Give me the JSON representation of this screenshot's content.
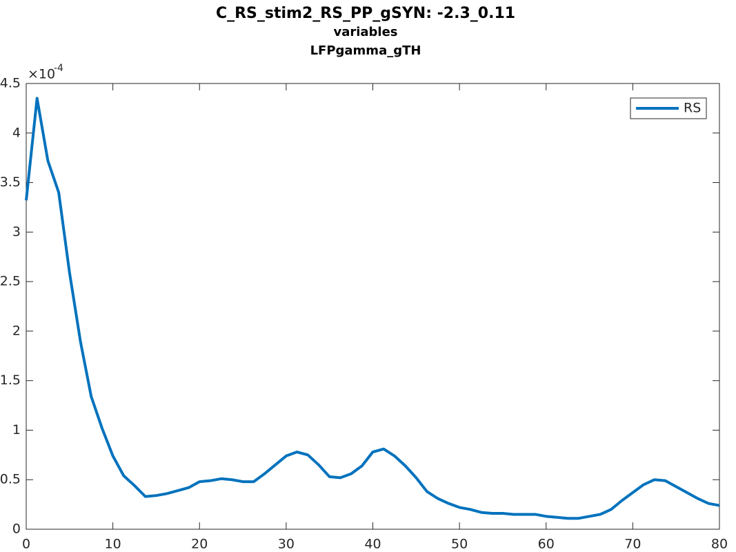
{
  "chart_data": {
    "type": "line",
    "title": "C_RS_stim2_RS_PP_gSYN: -2.3_0.11",
    "subtitle": "variables",
    "subtitle2": "LFPgamma_gTH",
    "y_multiplier_base": "×10",
    "y_multiplier_power": "-4",
    "x": [
      0,
      1.25,
      2.5,
      3.75,
      5,
      6.25,
      7.5,
      8.75,
      10,
      11.25,
      12.5,
      13.75,
      15,
      16.25,
      17.5,
      18.75,
      20,
      21.25,
      22.5,
      23.75,
      25,
      26.25,
      27.5,
      28.75,
      30,
      31.25,
      32.5,
      33.75,
      35,
      36.25,
      37.5,
      38.75,
      40,
      41.25,
      42.5,
      43.75,
      45,
      46.25,
      47.5,
      48.75,
      50,
      51.25,
      52.5,
      53.75,
      55,
      56.25,
      57.5,
      58.75,
      60,
      61.25,
      62.5,
      63.75,
      65,
      66.25,
      67.5,
      68.75,
      70,
      71.25,
      72.5,
      73.75,
      75,
      76.25,
      77.5,
      78.75,
      80
    ],
    "series": [
      {
        "name": "RS",
        "color": "#0072bd",
        "values": [
          3.32,
          4.35,
          3.72,
          3.4,
          2.59,
          1.9,
          1.34,
          1.02,
          0.74,
          0.54,
          0.44,
          0.33,
          0.34,
          0.36,
          0.39,
          0.42,
          0.48,
          0.49,
          0.51,
          0.5,
          0.48,
          0.48,
          0.56,
          0.65,
          0.74,
          0.78,
          0.75,
          0.65,
          0.53,
          0.52,
          0.56,
          0.64,
          0.78,
          0.81,
          0.74,
          0.64,
          0.52,
          0.38,
          0.31,
          0.26,
          0.22,
          0.2,
          0.17,
          0.16,
          0.16,
          0.15,
          0.15,
          0.15,
          0.13,
          0.12,
          0.11,
          0.11,
          0.13,
          0.15,
          0.2,
          0.29,
          0.37,
          0.45,
          0.5,
          0.49,
          0.43,
          0.37,
          0.31,
          0.26,
          0.24
        ]
      }
    ],
    "xlim": [
      0,
      80
    ],
    "xticks": [
      0,
      10,
      20,
      30,
      40,
      50,
      60,
      70,
      80
    ],
    "ylim": [
      0,
      4.5
    ],
    "yticks": [
      0,
      0.5,
      1,
      1.5,
      2,
      2.5,
      3,
      3.5,
      4,
      4.5
    ],
    "legend": "top-right"
  }
}
